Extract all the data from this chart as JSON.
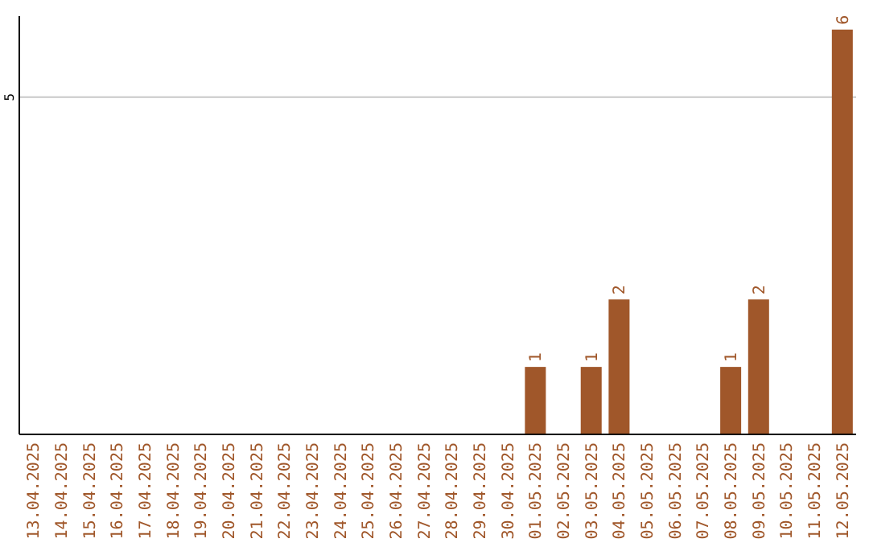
{
  "chart_data": {
    "type": "bar",
    "categories": [
      "13.04.2025",
      "14.04.2025",
      "15.04.2025",
      "16.04.2025",
      "17.04.2025",
      "18.04.2025",
      "19.04.2025",
      "20.04.2025",
      "21.04.2025",
      "22.04.2025",
      "23.04.2025",
      "24.04.2025",
      "25.04.2025",
      "26.04.2025",
      "27.04.2025",
      "28.04.2025",
      "29.04.2025",
      "30.04.2025",
      "01.05.2025",
      "02.05.2025",
      "03.05.2025",
      "04.05.2025",
      "05.05.2025",
      "06.05.2025",
      "07.05.2025",
      "08.05.2025",
      "09.05.2025",
      "10.05.2025",
      "11.05.2025",
      "12.05.2025"
    ],
    "values": [
      null,
      null,
      null,
      null,
      null,
      null,
      null,
      null,
      null,
      null,
      null,
      null,
      null,
      null,
      null,
      null,
      null,
      null,
      1,
      null,
      1,
      2,
      null,
      null,
      null,
      1,
      2,
      null,
      null,
      6
    ],
    "data_labels": true,
    "color": "#a0572a",
    "ylim": [
      0,
      6.2
    ],
    "yticks": [
      5
    ],
    "grid": "y"
  }
}
